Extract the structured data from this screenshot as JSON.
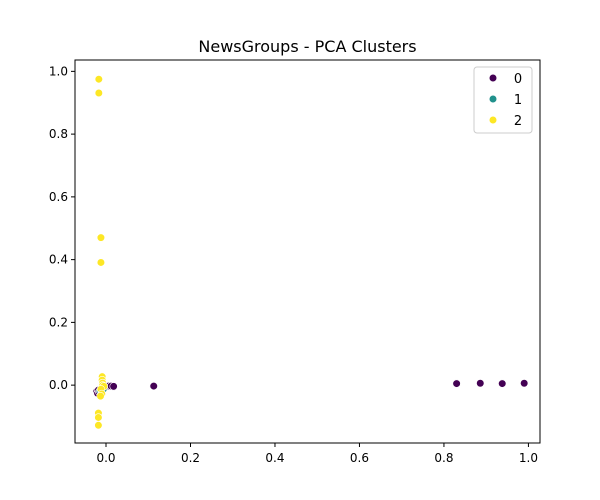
{
  "chart_data": {
    "type": "scatter",
    "title": "NewsGroups - PCA Clusters",
    "xlabel": "",
    "ylabel": "",
    "xlim": [
      -0.0734,
      1.0274
    ],
    "ylim": [
      -0.1844,
      1.0362
    ],
    "xticks": [
      0.0,
      0.2,
      0.4,
      0.6,
      0.8,
      1.0
    ],
    "xtick_labels": [
      "0.0",
      "0.2",
      "0.4",
      "0.6",
      "0.8",
      "1.0"
    ],
    "yticks": [
      0.0,
      0.2,
      0.4,
      0.6,
      0.8,
      1.0
    ],
    "ytick_labels": [
      "0.0",
      "0.2",
      "0.4",
      "0.6",
      "0.8",
      "1.0"
    ],
    "grid": false,
    "legend": {
      "placement": "top-right",
      "entries": [
        {
          "label": "0",
          "color": "#440154"
        },
        {
          "label": "1",
          "color": "#21918c"
        },
        {
          "label": "2",
          "color": "#fde725"
        }
      ]
    },
    "series": [
      {
        "name": "0",
        "color": "#440154",
        "points": [
          [
            -0.022,
            -0.02
          ],
          [
            -0.02,
            -0.026
          ],
          [
            -0.018,
            -0.016
          ],
          [
            -0.016,
            -0.022
          ],
          [
            0.0,
            -0.002
          ],
          [
            0.006,
            -0.003
          ],
          [
            0.012,
            -0.003
          ],
          [
            0.018,
            -0.004
          ],
          [
            0.113,
            -0.003
          ],
          [
            0.83,
            0.005
          ],
          [
            0.886,
            0.006
          ],
          [
            0.938,
            0.005
          ],
          [
            0.99,
            0.006
          ]
        ]
      },
      {
        "name": "1",
        "color": "#21918c",
        "points": [
          [
            -0.014,
            -0.018
          ],
          [
            -0.01,
            -0.02
          ],
          [
            -0.006,
            -0.012
          ]
        ]
      },
      {
        "name": "2",
        "color": "#fde725",
        "points": [
          [
            -0.017,
            0.975
          ],
          [
            -0.017,
            0.931
          ],
          [
            -0.012,
            0.47
          ],
          [
            -0.012,
            0.391
          ],
          [
            -0.009,
            0.027
          ],
          [
            -0.009,
            0.016
          ],
          [
            -0.008,
            0.007
          ],
          [
            -0.008,
            -0.001
          ],
          [
            -0.005,
            -0.004
          ],
          [
            -0.012,
            -0.013
          ],
          [
            -0.01,
            -0.028
          ],
          [
            -0.013,
            -0.035
          ],
          [
            -0.018,
            -0.089
          ],
          [
            -0.018,
            -0.103
          ],
          [
            -0.018,
            -0.128
          ]
        ]
      }
    ]
  }
}
